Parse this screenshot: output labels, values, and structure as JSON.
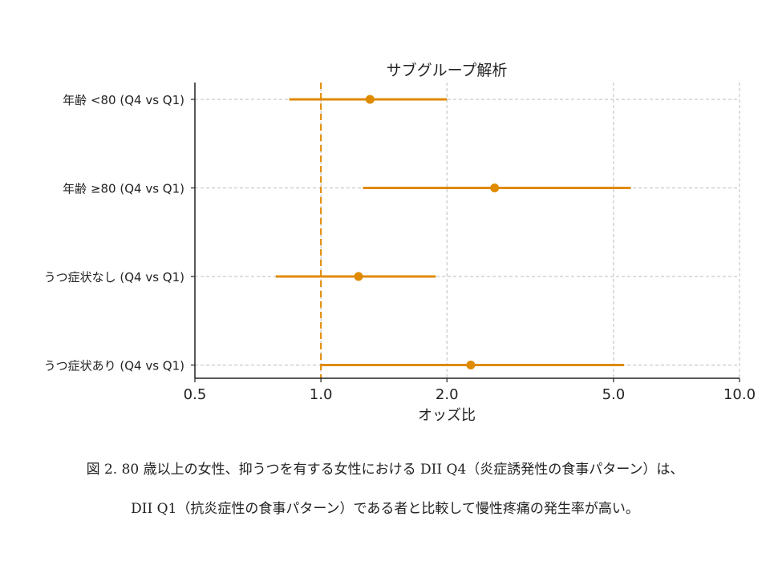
{
  "chart_data": {
    "type": "forest",
    "title": "サブグループ解析",
    "xlabel": "オッズ比",
    "x_scale": "log",
    "xlim": [
      0.5,
      10.0
    ],
    "x_ticks": [
      0.5,
      1.0,
      2.0,
      5.0,
      10.0
    ],
    "x_tick_labels": [
      "0.5",
      "1.0",
      "2.0",
      "5.0",
      "10.0"
    ],
    "reference_line": 1.0,
    "grid": true,
    "color": "#e08a00",
    "rows": [
      {
        "label": "年齢 <80 (Q4 vs Q1)",
        "or": 1.31,
        "lower": 0.84,
        "upper": 2.0
      },
      {
        "label": "年齢 ≥80 (Q4 vs Q1)",
        "or": 2.6,
        "lower": 1.26,
        "upper": 5.5
      },
      {
        "label": "うつ症状なし (Q4 vs Q1)",
        "or": 1.23,
        "lower": 0.78,
        "upper": 1.88
      },
      {
        "label": "うつ症状あり (Q4 vs Q1)",
        "or": 2.28,
        "lower": 1.0,
        "upper": 5.3
      }
    ]
  },
  "caption": {
    "line1": "図 2. 80 歳以上の女性、抑うつを有する女性における DII Q4（炎症誘発性の食事パターン）は、",
    "line2": "DII Q1（抗炎症性の食事パターン）である者と比較して慢性疼痛の発生率が高い。"
  }
}
